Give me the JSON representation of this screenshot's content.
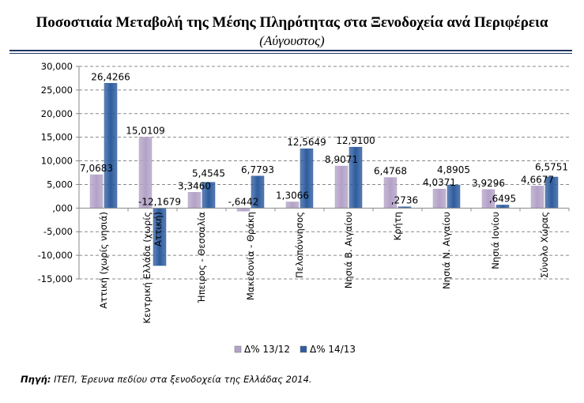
{
  "chart_data": {
    "type": "bar",
    "title": "Ποσοστιαία Μεταβολή της Μέσης Πληρότητας στα Ξενοδοχεία ανά Περιφέρεια",
    "subtitle": "(Αύγουστος)",
    "categories": [
      [
        "Αττική (χωρίς νησιά)"
      ],
      [
        "Κεντρική Ελλάδα (χωρίς",
        "Αττική)"
      ],
      [
        "Ήπειρος - Θεσσαλία"
      ],
      [
        "Μακεδονία - Θράκη"
      ],
      [
        "Πελοπόννησος"
      ],
      [
        "Νησιά Β. Αιγαίου"
      ],
      [
        "Κρήτη"
      ],
      [
        "Νησιά Ν. Αιγαίου"
      ],
      [
        "Νησιά Ιονίου"
      ],
      [
        "Σύνολο Χώρας"
      ]
    ],
    "series": [
      {
        "name": "Δ% 13/12",
        "color": "#b3a2c7",
        "values": [
          7.0683,
          15.0109,
          3.346,
          -0.6442,
          1.3066,
          8.9071,
          6.4768,
          4.0371,
          3.9296,
          4.6677
        ],
        "labels": [
          "7,0683",
          "15,0109",
          "3,3460",
          "-,6442",
          "1,3066",
          "8,9071",
          "6,4768",
          "4,0371",
          "3,9296",
          "4,6677"
        ]
      },
      {
        "name": "Δ% 14/13",
        "color": "#2e5c9e",
        "values": [
          26.4266,
          -12.1679,
          5.4545,
          6.7793,
          12.5649,
          12.91,
          0.2736,
          4.8905,
          0.6495,
          6.5751
        ],
        "labels": [
          "26,4266",
          "-12,1679",
          "5,4545",
          "6,7793",
          "12,5649",
          "12,9100",
          ",2736",
          "4,8905",
          ",6495",
          "6,5751"
        ]
      }
    ],
    "ylim": [
      -15,
      30
    ],
    "yticks": [
      30,
      25,
      20,
      15,
      10,
      5,
      0,
      -5,
      -10,
      -15
    ],
    "ytick_labels": [
      "30,000",
      "25,000",
      "20,000",
      "15,000",
      "10,000",
      "5,000",
      ",000",
      "-5,000",
      "-10,000",
      "-15,000"
    ],
    "grid": true,
    "legend": "bottom"
  },
  "source": {
    "label": "Πηγή:",
    "text": " ΙΤΕΠ, Έρευνα πεδίου στα ξενοδοχεία της Ελλάδας 2014."
  }
}
